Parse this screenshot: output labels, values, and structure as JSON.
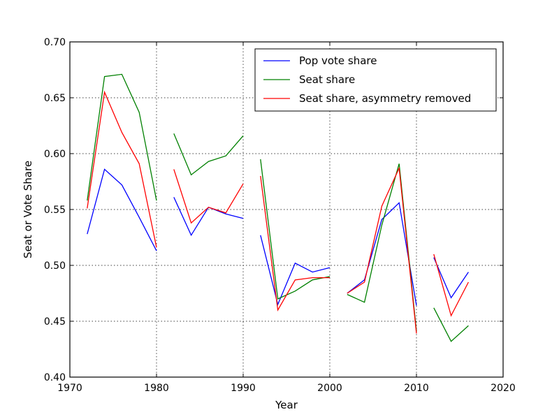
{
  "chart_data": {
    "type": "line",
    "title": "",
    "xlabel": "Year",
    "ylabel": "Seat or Vote Share",
    "xlim": [
      1970,
      2020
    ],
    "ylim": [
      0.4,
      0.7
    ],
    "xticks": [
      "1970",
      "1980",
      "1990",
      "2000",
      "2010",
      "2020"
    ],
    "yticks": [
      "0.40",
      "0.45",
      "0.50",
      "0.55",
      "0.60",
      "0.65",
      "0.70"
    ],
    "grid": true,
    "legend_position": "top-right",
    "series": [
      {
        "name": "Pop vote share",
        "color": "#0000ff",
        "segments": [
          [
            [
              1972,
              0.528
            ],
            [
              1974,
              0.586
            ],
            [
              1976,
              0.572
            ],
            [
              1978,
              0.543
            ],
            [
              1980,
              0.513
            ]
          ],
          [
            [
              1982,
              0.561
            ],
            [
              1984,
              0.527
            ],
            [
              1986,
              0.552
            ],
            [
              1988,
              0.546
            ],
            [
              1990,
              0.542
            ]
          ],
          [
            [
              1992,
              0.527
            ],
            [
              1994,
              0.465
            ],
            [
              1996,
              0.502
            ],
            [
              1998,
              0.494
            ],
            [
              2000,
              0.498
            ]
          ],
          [
            [
              2002,
              0.475
            ],
            [
              2004,
              0.487
            ],
            [
              2006,
              0.541
            ],
            [
              2008,
              0.556
            ],
            [
              2010,
              0.464
            ]
          ],
          [
            [
              2012,
              0.507
            ],
            [
              2014,
              0.471
            ],
            [
              2016,
              0.494
            ]
          ]
        ]
      },
      {
        "name": "Seat share",
        "color": "#008000",
        "segments": [
          [
            [
              1972,
              0.558
            ],
            [
              1974,
              0.669
            ],
            [
              1976,
              0.671
            ],
            [
              1978,
              0.637
            ],
            [
              1980,
              0.558
            ]
          ],
          [
            [
              1982,
              0.618
            ],
            [
              1984,
              0.581
            ],
            [
              1986,
              0.593
            ],
            [
              1988,
              0.598
            ],
            [
              1990,
              0.616
            ]
          ],
          [
            [
              1992,
              0.595
            ],
            [
              1994,
              0.47
            ],
            [
              1996,
              0.477
            ],
            [
              1998,
              0.487
            ],
            [
              2000,
              0.49
            ]
          ],
          [
            [
              2002,
              0.474
            ],
            [
              2004,
              0.467
            ],
            [
              2006,
              0.536
            ],
            [
              2008,
              0.591
            ],
            [
              2010,
              0.441
            ]
          ],
          [
            [
              2012,
              0.462
            ],
            [
              2014,
              0.432
            ],
            [
              2016,
              0.446
            ]
          ]
        ]
      },
      {
        "name": "Seat share, asymmetry removed",
        "color": "#ff0000",
        "segments": [
          [
            [
              1972,
              0.551
            ],
            [
              1974,
              0.655
            ],
            [
              1976,
              0.619
            ],
            [
              1978,
              0.591
            ],
            [
              1980,
              0.516
            ]
          ],
          [
            [
              1982,
              0.586
            ],
            [
              1984,
              0.538
            ],
            [
              1986,
              0.552
            ],
            [
              1988,
              0.547
            ],
            [
              1990,
              0.573
            ]
          ],
          [
            [
              1992,
              0.58
            ],
            [
              1994,
              0.46
            ],
            [
              1996,
              0.487
            ],
            [
              1998,
              0.489
            ],
            [
              2000,
              0.489
            ]
          ],
          [
            [
              2002,
              0.475
            ],
            [
              2004,
              0.485
            ],
            [
              2006,
              0.553
            ],
            [
              2008,
              0.587
            ],
            [
              2010,
              0.439
            ]
          ],
          [
            [
              2012,
              0.51
            ],
            [
              2014,
              0.455
            ],
            [
              2016,
              0.485
            ]
          ]
        ]
      }
    ]
  }
}
